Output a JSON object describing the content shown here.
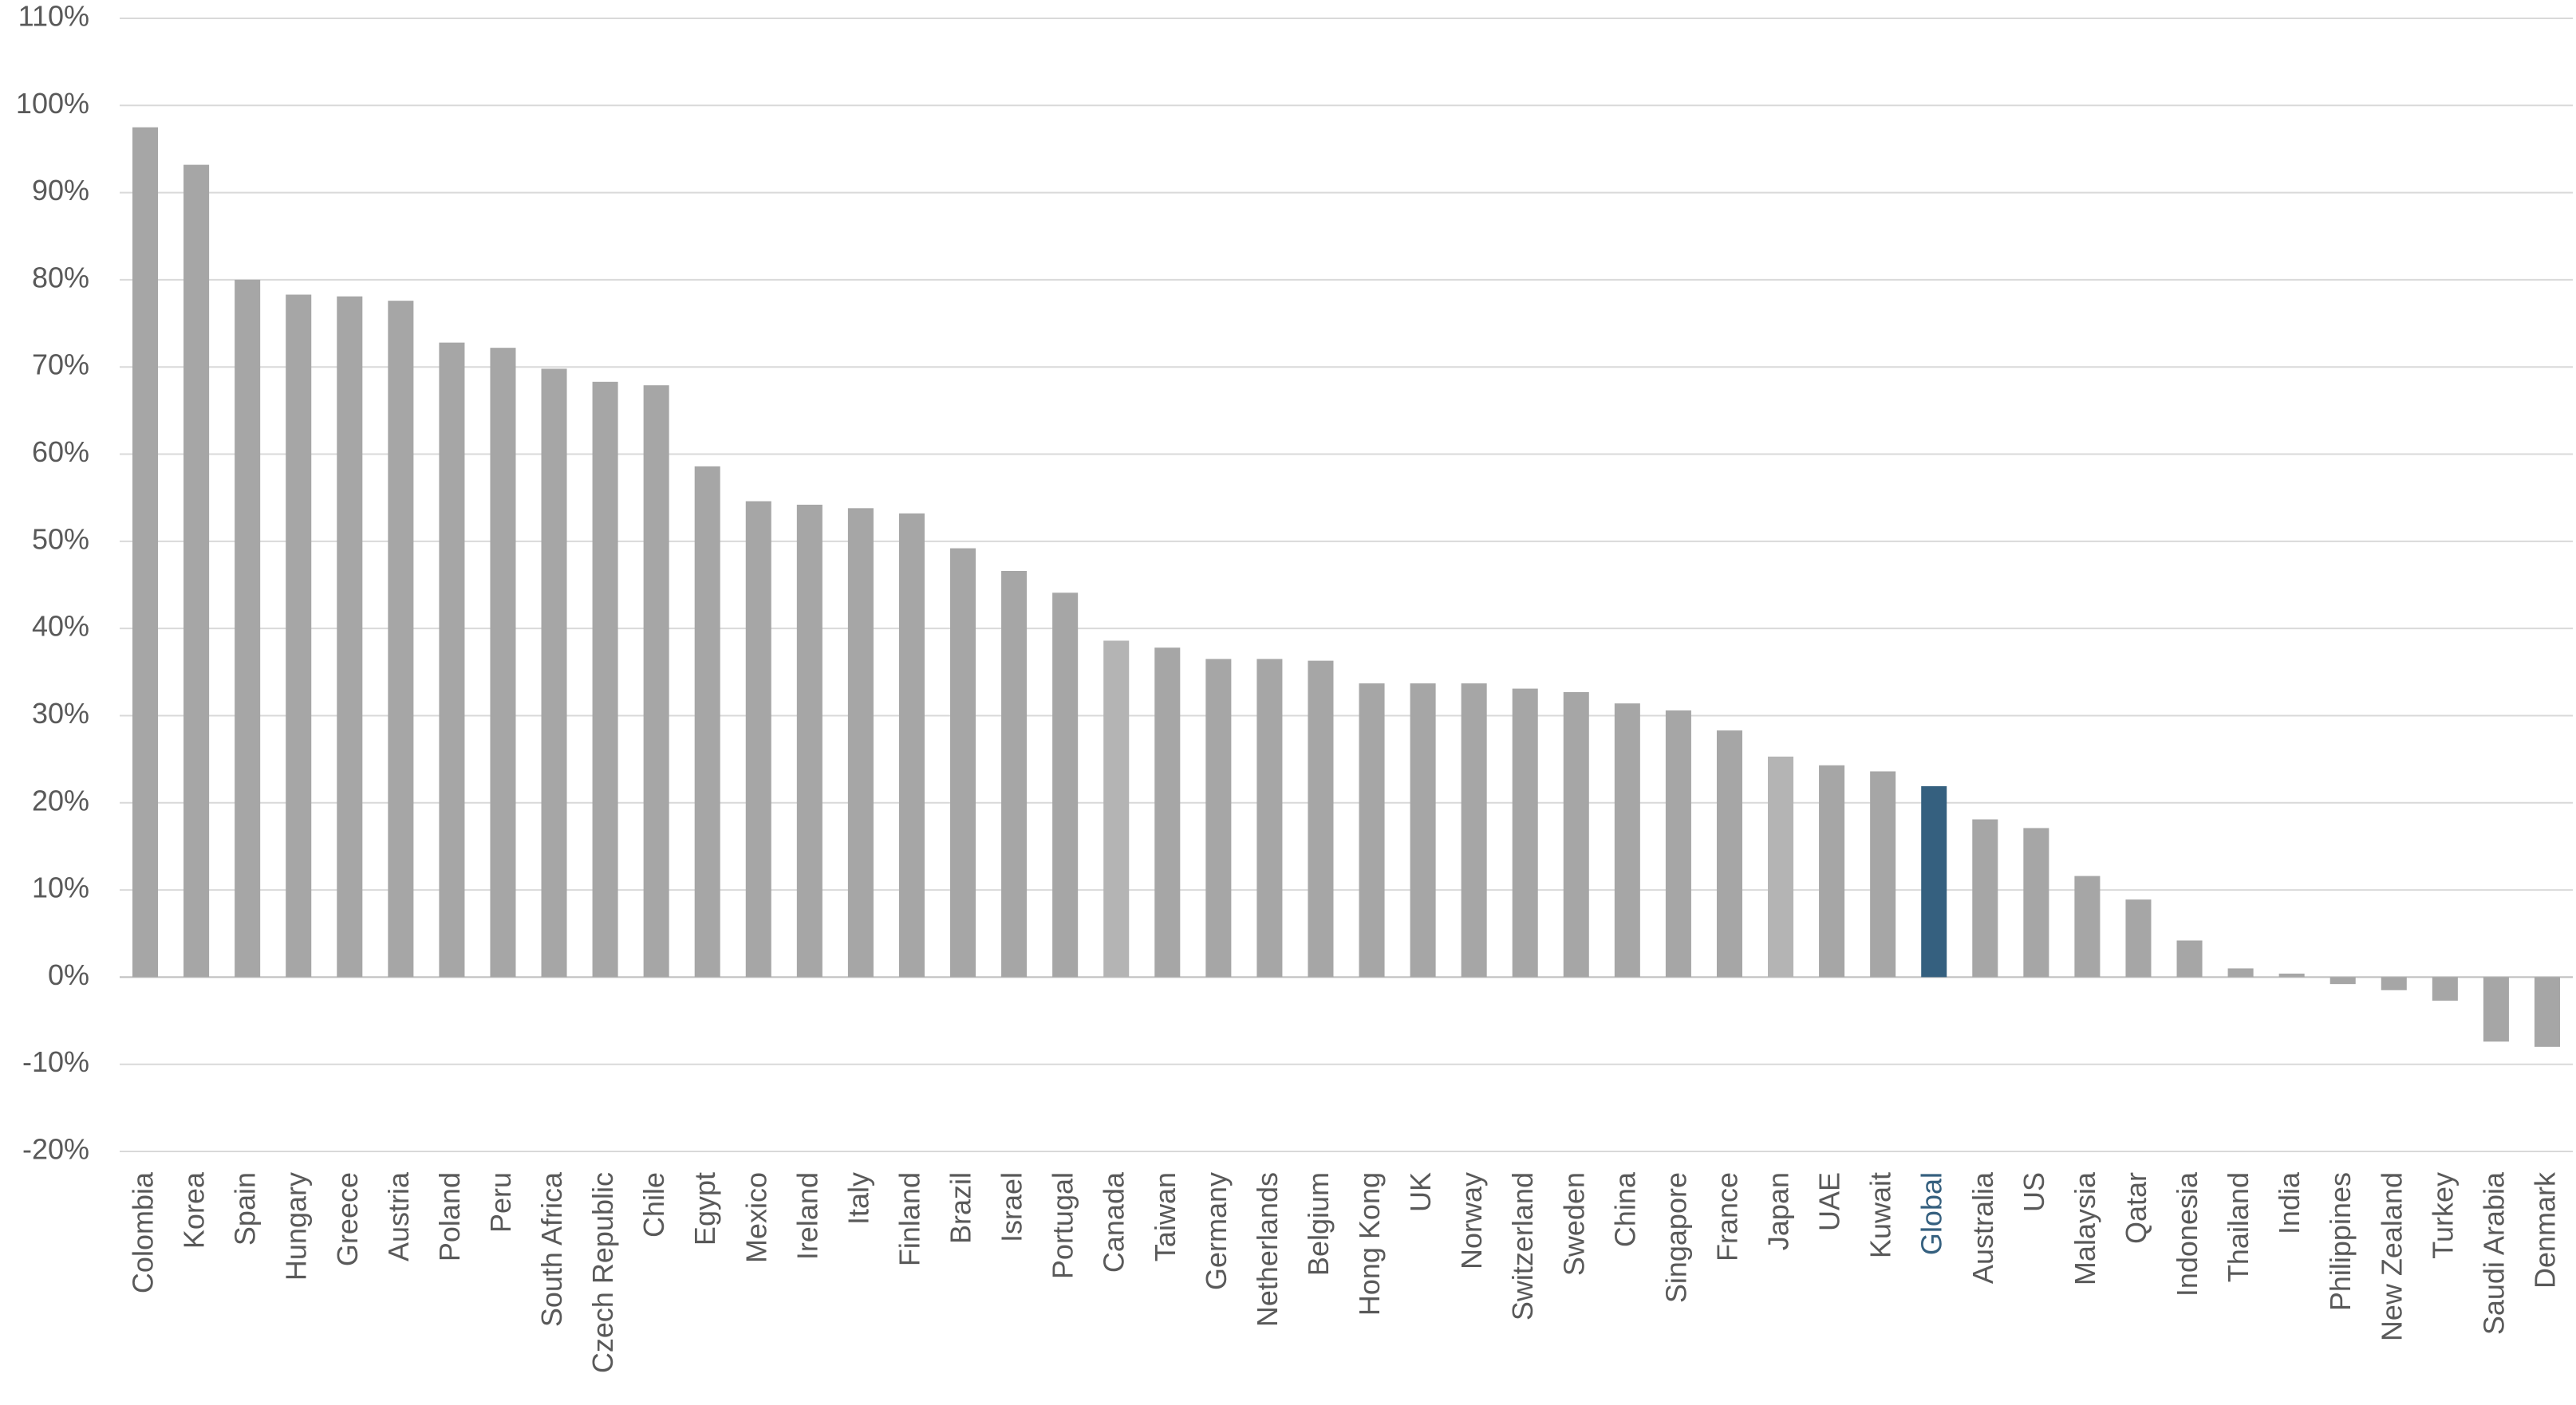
{
  "chart_data": {
    "type": "bar",
    "categories": [
      "Colombia",
      "Korea",
      "Spain",
      "Hungary",
      "Greece",
      "Austria",
      "Poland",
      "Peru",
      "South Africa",
      "Czech Republic",
      "Chile",
      "Egypt",
      "Mexico",
      "Ireland",
      "Italy",
      "Finland",
      "Brazil",
      "Israel",
      "Portugal",
      "Canada",
      "Taiwan",
      "Germany",
      "Netherlands",
      "Belgium",
      "Hong Kong",
      "UK",
      "Norway",
      "Switzerland",
      "Sweden",
      "China",
      "Singapore",
      "France",
      "Japan",
      "UAE",
      "Kuwait",
      "Global",
      "Australia",
      "US",
      "Malaysia",
      "Qatar",
      "Indonesia",
      "Thailand",
      "India",
      "Philippines",
      "New Zealand",
      "Turkey",
      "Saudi Arabia",
      "Denmark"
    ],
    "values": [
      97.5,
      93.2,
      80,
      78.3,
      78.1,
      77.6,
      72.8,
      72.2,
      69.8,
      68.3,
      67.9,
      58.6,
      54.6,
      54.2,
      53.8,
      53.2,
      49.2,
      46.6,
      44.1,
      38.6,
      37.8,
      36.5,
      36.5,
      36.3,
      33.7,
      33.7,
      33.7,
      33.1,
      32.7,
      31.4,
      30.6,
      28.3,
      25.3,
      24.3,
      23.6,
      21.9,
      18.1,
      17.1,
      11.6,
      8.9,
      4.2,
      1.0,
      0.4,
      -0.8,
      -1.5,
      -2.7,
      -7.4,
      -8.0
    ],
    "colors": [
      "#a6a6a6",
      "#a6a6a6",
      "#a6a6a6",
      "#a6a6a6",
      "#a6a6a6",
      "#a6a6a6",
      "#a6a6a6",
      "#a6a6a6",
      "#a6a6a6",
      "#a6a6a6",
      "#a6a6a6",
      "#a6a6a6",
      "#a6a6a6",
      "#a6a6a6",
      "#a6a6a6",
      "#a6a6a6",
      "#a6a6a6",
      "#a6a6a6",
      "#a6a6a6",
      "#b4b4b4",
      "#a6a6a6",
      "#a6a6a6",
      "#a6a6a6",
      "#a6a6a6",
      "#a6a6a6",
      "#a6a6a6",
      "#a6a6a6",
      "#a6a6a6",
      "#a6a6a6",
      "#a6a6a6",
      "#a6a6a6",
      "#a6a6a6",
      "#b4b4b4",
      "#a6a6a6",
      "#a6a6a6",
      "#35607f",
      "#a6a6a6",
      "#a6a6a6",
      "#a6a6a6",
      "#a6a6a6",
      "#a6a6a6",
      "#a6a6a6",
      "#a6a6a6",
      "#a6a6a6",
      "#a6a6a6",
      "#a6a6a6",
      "#a6a6a6",
      "#a6a6a6"
    ],
    "highlight": {
      "index": 35,
      "color": "#35607f"
    },
    "ylim": [
      -20,
      110
    ],
    "yticks": [
      {
        "value": -20,
        "label": "-20%"
      },
      {
        "value": -10,
        "label": "-10%"
      },
      {
        "value": 0,
        "label": "0%"
      },
      {
        "value": 10,
        "label": "10%"
      },
      {
        "value": 20,
        "label": "20%"
      },
      {
        "value": 30,
        "label": "30%"
      },
      {
        "value": 40,
        "label": "40%"
      },
      {
        "value": 50,
        "label": "50%"
      },
      {
        "value": 60,
        "label": "60%"
      },
      {
        "value": 70,
        "label": "70%"
      },
      {
        "value": 80,
        "label": "80%"
      },
      {
        "value": 90,
        "label": "90%"
      },
      {
        "value": 100,
        "label": "100%"
      },
      {
        "value": 110,
        "label": "110%"
      }
    ],
    "grid": true
  }
}
